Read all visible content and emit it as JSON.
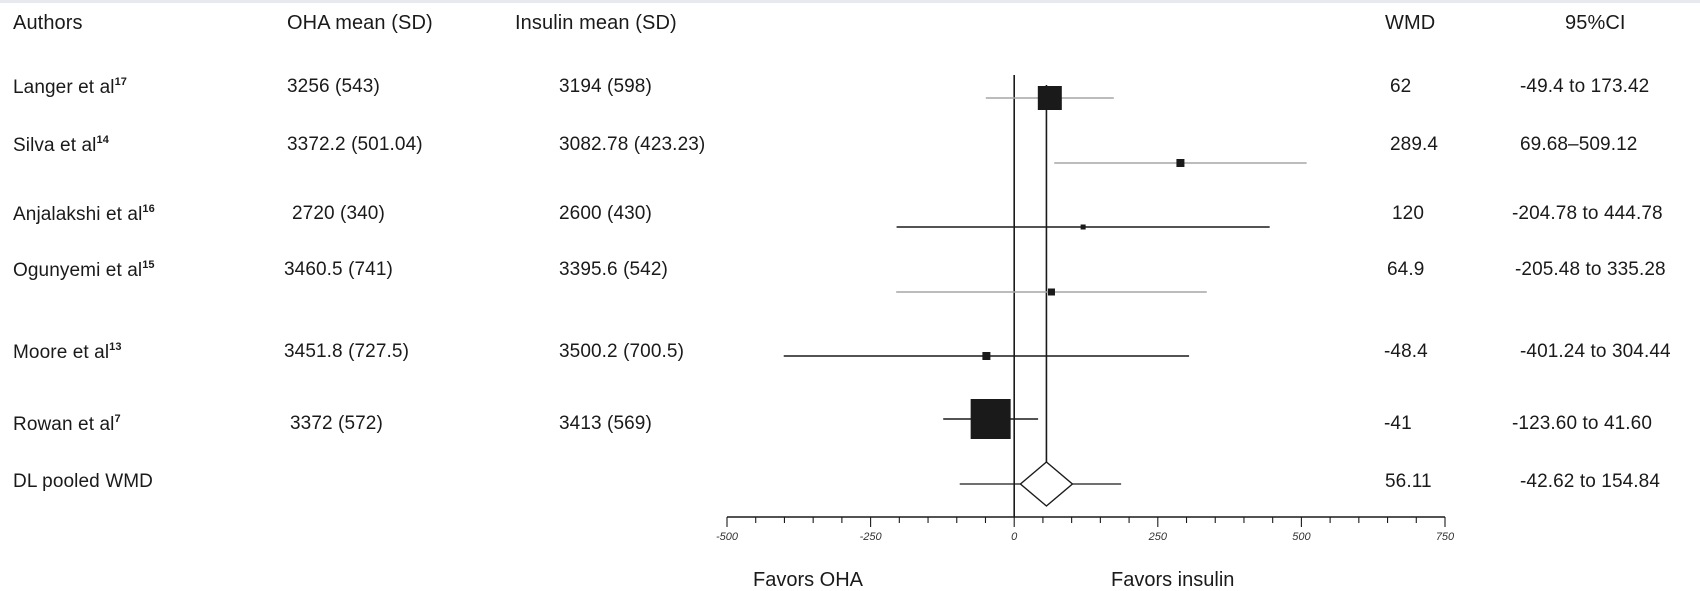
{
  "headers": {
    "authors": "Authors",
    "oha": "OHA mean (SD)",
    "insulin": "Insulin mean (SD)",
    "wmd": "WMD",
    "ci": "95%CI"
  },
  "rows": [
    {
      "name": "Langer et al",
      "ref": "17",
      "oha": "3256 (543)",
      "insulin": "3194 (598)",
      "wmd": "62",
      "ci": "-49.4 to 173.42"
    },
    {
      "name": "Silva et al",
      "ref": "14",
      "oha": "3372.2 (501.04)",
      "insulin": "3082.78 (423.23)",
      "wmd": "289.4",
      "ci": "69.68–509.12"
    },
    {
      "name": "Anjalakshi et al",
      "ref": "16",
      "oha": "2720 (340)",
      "insulin": "2600 (430)",
      "wmd": "120",
      "ci": "-204.78 to 444.78"
    },
    {
      "name": "Ogunyemi et al",
      "ref": "15",
      "oha": "3460.5 (741)",
      "insulin": "3395.6 (542)",
      "wmd": "64.9",
      "ci": "-205.48 to 335.28"
    },
    {
      "name": "Moore et al",
      "ref": "13",
      "oha": "3451.8 (727.5)",
      "insulin": "3500.2 (700.5)",
      "wmd": "-48.4",
      "ci": "-401.24 to 304.44"
    },
    {
      "name": "Rowan et al",
      "ref": "7",
      "oha": "3372 (572)",
      "insulin": "3413 (569)",
      "wmd": "-41",
      "ci": "-123.60 to 41.60"
    }
  ],
  "pooled": {
    "name": "DL pooled WMD",
    "wmd": "56.11",
    "ci": "-42.62 to 154.84"
  },
  "favors": {
    "left": "Favors OHA",
    "right": "Favors insulin"
  },
  "colors": {
    "marker": "#1a1a1a",
    "ci_line_gray": "#a6a6a6",
    "ci_line_dark": "#1a1a1a"
  },
  "chart_data": {
    "type": "forest",
    "xlim": [
      -500,
      750
    ],
    "xticks": [
      "-500",
      "-250",
      "0",
      "250",
      "500",
      "750"
    ],
    "null_line": 0,
    "pooled_line": 56.11,
    "studies": [
      {
        "label": "Langer et al",
        "estimate": 62,
        "lower": -49.4,
        "upper": 173.42,
        "weight": 3
      },
      {
        "label": "Silva et al",
        "estimate": 289.4,
        "lower": 69.68,
        "upper": 509.12,
        "weight": 1
      },
      {
        "label": "Anjalakshi et al",
        "estimate": 120,
        "lower": -204.78,
        "upper": 444.78,
        "weight": 0.5
      },
      {
        "label": "Ogunyemi et al",
        "estimate": 64.9,
        "lower": -205.48,
        "upper": 335.28,
        "weight": 0.8
      },
      {
        "label": "Moore et al",
        "estimate": -48.4,
        "lower": -401.24,
        "upper": 304.44,
        "weight": 1
      },
      {
        "label": "Rowan et al",
        "estimate": -41,
        "lower": -123.6,
        "upper": 41.6,
        "weight": 6
      }
    ],
    "pooled": {
      "label": "DL pooled WMD",
      "estimate": 56.11,
      "lower": -42.62,
      "upper": 154.84
    }
  }
}
